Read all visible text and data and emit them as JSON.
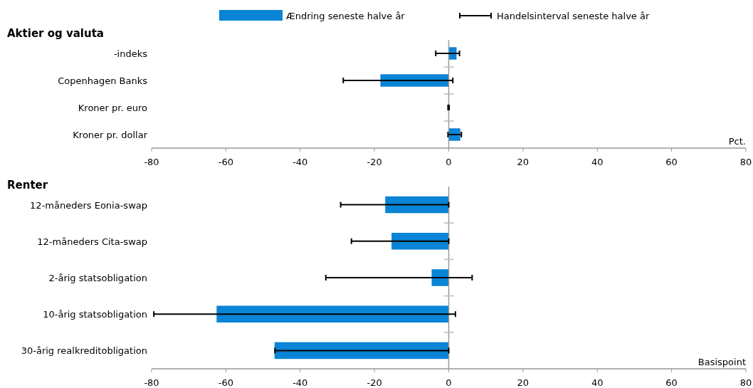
{
  "chart_data": [
    {
      "type": "bar",
      "orientation": "horizontal",
      "title": "Aktier og valuta",
      "xlabel": "Pct.",
      "categories": [
        "-indeks",
        "Copenhagen Banks",
        "Kroner pr. euro",
        "Kroner pr. dollar"
      ],
      "legend": "top",
      "annotations": [
        "Handelsinterval seneste halve år"
      ],
      "series": [
        {
          "name": "Ændring seneste halve år",
          "color": "#0a84d6",
          "values": [
            2.1,
            -18.4,
            -0.1,
            3.1
          ],
          "errors": [
            [
              -3.5,
              2.9
            ],
            [
              -28.4,
              1.1
            ],
            [
              -0.2,
              0.1
            ],
            [
              -0.2,
              3.4
            ]
          ]
        }
      ],
      "xlim": [
        -80,
        80
      ],
      "xticks": [
        -80,
        -60,
        -40,
        -20,
        0,
        20,
        40,
        60,
        80
      ]
    },
    {
      "type": "bar",
      "orientation": "horizontal",
      "title": "Renter",
      "xlabel": "Basispoint",
      "categories": [
        "12-måneders Eonia-swap",
        "12-måneders Cita-swap",
        "2-årig statsobligation",
        "10-årig statsobligation",
        "30-årig realkreditobligation"
      ],
      "series": [
        {
          "color": "#0a84d6",
          "values": [
            -17.1,
            -15.4,
            -4.6,
            -62.5,
            -46.9
          ],
          "errors": [
            [
              -29.1,
              0
            ],
            [
              -26.2,
              0
            ],
            [
              -33.1,
              6.3
            ],
            [
              -79.4,
              1.8
            ],
            [
              -46.8,
              0
            ]
          ]
        }
      ],
      "xlim": [
        -80,
        80
      ],
      "xticks": [
        -80,
        -60,
        -40,
        -20,
        0,
        20,
        40,
        60,
        80
      ]
    }
  ]
}
